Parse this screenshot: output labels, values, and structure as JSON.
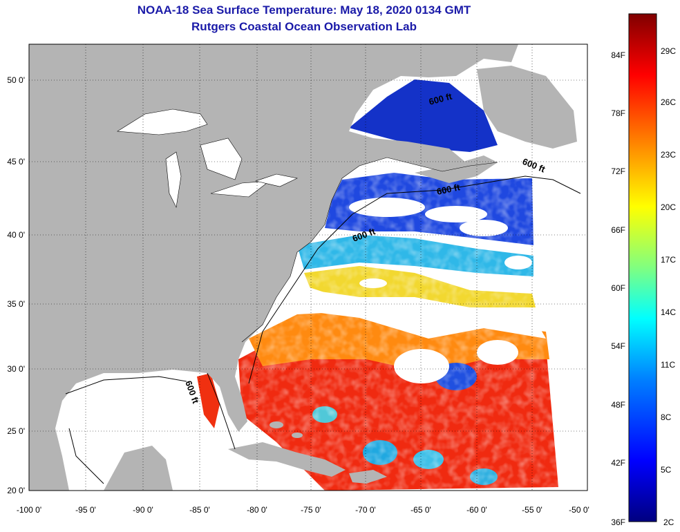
{
  "title": "NOAA-18 Sea Surface Temperature:  May 18, 2020 0134 GMT",
  "subtitle": "Rutgers Coastal Ocean Observation Lab",
  "map": {
    "lon_ticks": [
      "-100 0'",
      "-95 0'",
      "-90 0'",
      "-85 0'",
      "-80 0'",
      "-75 0'",
      "-70 0'",
      "-65 0'",
      "-60 0'",
      "-55 0'",
      "-50 0'"
    ],
    "lat_ticks": [
      "50 0'",
      "45 0'",
      "40 0'",
      "35 0'",
      "30 0'",
      "25 0'",
      "20 0'"
    ],
    "land_color": "#b4b4b4",
    "cloud_color": "#ffffff",
    "contour_labels": [
      "600 ft",
      "600 ft",
      "600 ft",
      "600 ft",
      "600 ft"
    ]
  },
  "colorbar": {
    "fahrenheit_labels": [
      "84F",
      "78F",
      "72F",
      "66F",
      "60F",
      "54F",
      "48F",
      "42F",
      "36F"
    ],
    "celsius_labels": [
      "29C",
      "26C",
      "23C",
      "20C",
      "17C",
      "14C",
      "11C",
      "8C",
      "5C",
      "2C"
    ],
    "colors": [
      "#000080",
      "#0000ff",
      "#0080ff",
      "#00ffff",
      "#80ff80",
      "#ffff00",
      "#ff8000",
      "#ff0000",
      "#800000"
    ]
  }
}
